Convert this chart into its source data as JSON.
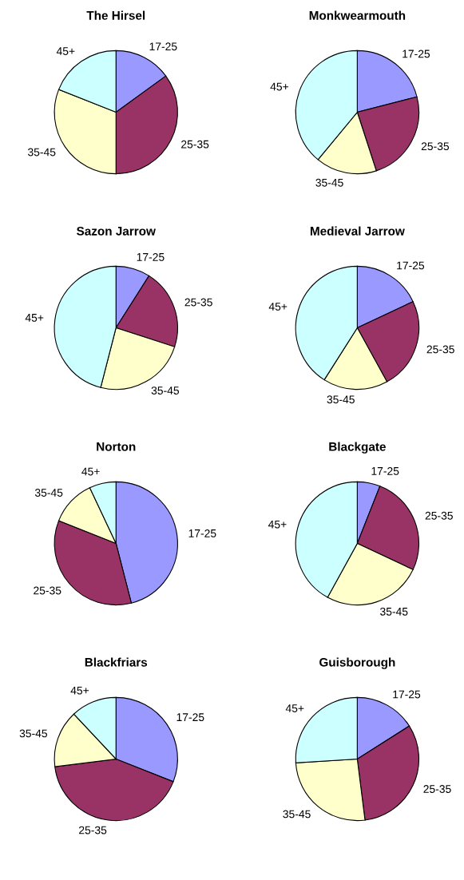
{
  "chart_data": [
    {
      "type": "pie",
      "title": "The Hirsel",
      "categories": [
        "17-25",
        "25-35",
        "35-45",
        "45+"
      ],
      "values": [
        15,
        35,
        31,
        19
      ],
      "colors": [
        "#9999ff",
        "#993366",
        "#ffffcc",
        "#ccffff"
      ]
    },
    {
      "type": "pie",
      "title": "Monkwearmouth",
      "categories": [
        "17-25",
        "25-35",
        "35-45",
        "45+"
      ],
      "values": [
        21,
        24,
        16,
        39
      ],
      "colors": [
        "#9999ff",
        "#993366",
        "#ffffcc",
        "#ccffff"
      ]
    },
    {
      "type": "pie",
      "title": "Sazon Jarrow",
      "categories": [
        "17-25",
        "25-35",
        "35-45",
        "45+"
      ],
      "values": [
        9,
        21,
        24,
        46
      ],
      "colors": [
        "#9999ff",
        "#993366",
        "#ffffcc",
        "#ccffff"
      ]
    },
    {
      "type": "pie",
      "title": "Medieval Jarrow",
      "categories": [
        "17-25",
        "25-35",
        "35-45",
        "45+"
      ],
      "values": [
        18,
        24,
        17,
        41
      ],
      "colors": [
        "#9999ff",
        "#993366",
        "#ffffcc",
        "#ccffff"
      ]
    },
    {
      "type": "pie",
      "title": "Norton",
      "categories": [
        "17-25",
        "25-35",
        "35-45",
        "45+"
      ],
      "values": [
        46,
        35,
        12,
        7
      ],
      "colors": [
        "#9999ff",
        "#993366",
        "#ffffcc",
        "#ccffff"
      ]
    },
    {
      "type": "pie",
      "title": "Blackgate",
      "categories": [
        "17-25",
        "25-35",
        "35-45",
        "45+"
      ],
      "values": [
        6,
        26,
        26,
        42
      ],
      "colors": [
        "#9999ff",
        "#993366",
        "#ffffcc",
        "#ccffff"
      ]
    },
    {
      "type": "pie",
      "title": "Blackfriars",
      "categories": [
        "17-25",
        "25-35",
        "35-45",
        "45+"
      ],
      "values": [
        31,
        42,
        15,
        12
      ],
      "colors": [
        "#9999ff",
        "#993366",
        "#ffffcc",
        "#ccffff"
      ]
    },
    {
      "type": "pie",
      "title": "Guisborough",
      "categories": [
        "17-25",
        "25-35",
        "35-45",
        "45+"
      ],
      "values": [
        16,
        32,
        26,
        26
      ],
      "colors": [
        "#9999ff",
        "#993366",
        "#ffffcc",
        "#ccffff"
      ]
    }
  ]
}
